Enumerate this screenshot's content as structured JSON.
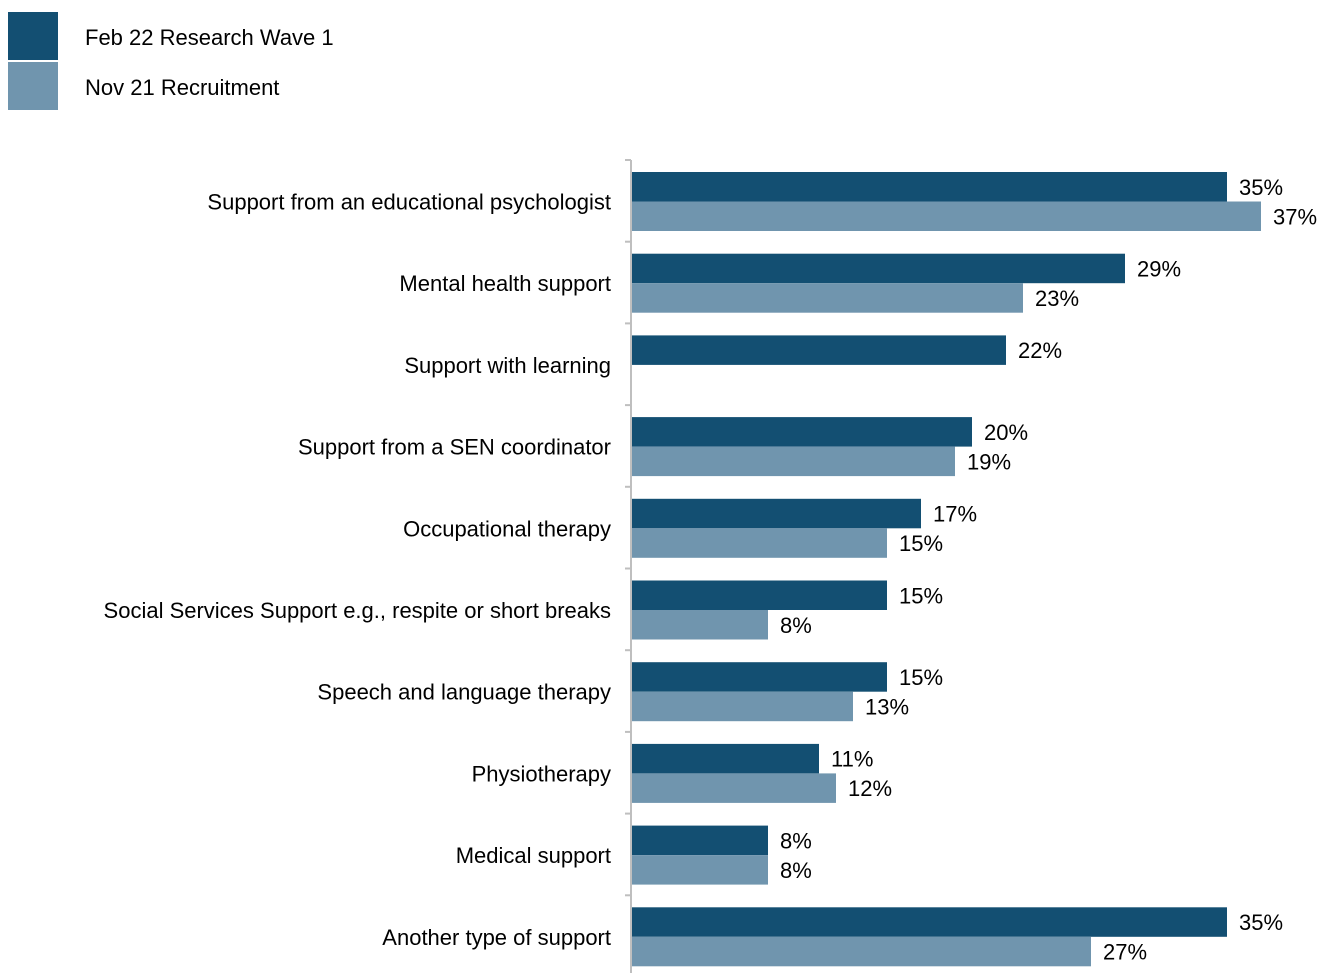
{
  "chart_data": {
    "type": "bar",
    "orientation": "horizontal",
    "title": "",
    "xlabel": "",
    "ylabel": "",
    "xlim": [
      0,
      37
    ],
    "grid": false,
    "legend_position": "top-left",
    "value_suffix": "%",
    "categories": [
      "Support from an educational psychologist",
      "Mental health support",
      "Support with learning",
      "Support from a SEN coordinator",
      "Occupational therapy",
      "Social Services Support e.g., respite or short breaks",
      "Speech and language therapy",
      "Physiotherapy",
      "Medical support",
      "Another type of support"
    ],
    "series": [
      {
        "name": "Feb 22 Research Wave 1",
        "color": "#134f72",
        "values": [
          35,
          29,
          22,
          20,
          17,
          15,
          15,
          11,
          8,
          35
        ]
      },
      {
        "name": "Nov 21 Recruitment",
        "color": "#7095ae",
        "values": [
          37,
          23,
          null,
          19,
          15,
          8,
          13,
          12,
          8,
          27
        ]
      }
    ]
  }
}
